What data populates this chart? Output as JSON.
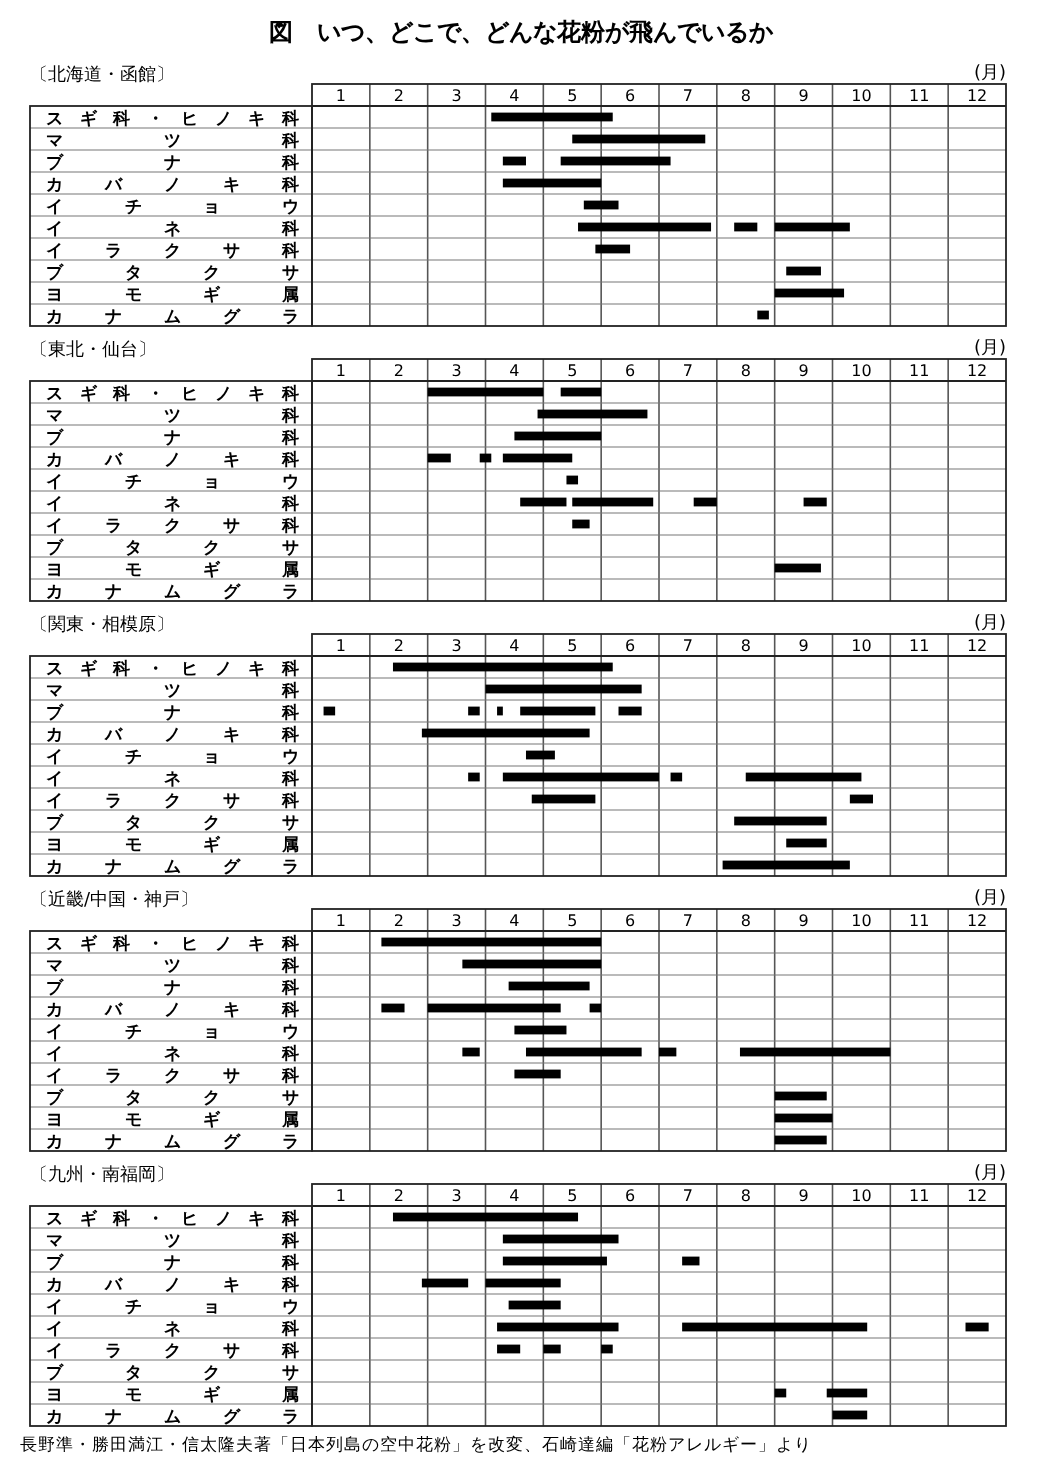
{
  "chart_data": [
    {
      "type": "bar",
      "orientation": "horizontal",
      "title": "図　いつ、どこで、どんな花粉が飛んでいるか",
      "subtitle": "〔北海道・函館〕",
      "xlabel": "(月)",
      "grid": true,
      "xlim": [
        0,
        12
      ],
      "xticks": [
        {
          "value": 0.5,
          "label": "1"
        },
        {
          "value": 1.5,
          "label": "2"
        },
        {
          "value": 2.5,
          "label": "3"
        },
        {
          "value": 3.5,
          "label": "4"
        },
        {
          "value": 4.5,
          "label": "5"
        },
        {
          "value": 5.5,
          "label": "6"
        },
        {
          "value": 6.5,
          "label": "7"
        },
        {
          "value": 7.5,
          "label": "8"
        },
        {
          "value": 8.5,
          "label": "9"
        },
        {
          "value": 9.5,
          "label": "10"
        },
        {
          "value": 10.5,
          "label": "11"
        },
        {
          "value": 11.5,
          "label": "12"
        }
      ],
      "categories": [
        "スギ科・ヒノキ科",
        "マツ科",
        "ブナ科",
        "カバノキ科",
        "イチョウ",
        "イネ科",
        "イラクサ科",
        "ブタクサ",
        "ヨモギ属",
        "カナムグラ"
      ],
      "series": [
        {
          "color": "#000000",
          "base": [
            3.1,
            4.5,
            3.3,
            3.3,
            4.7,
            4.6,
            4.9,
            8.2,
            8.0,
            7.7
          ],
          "values": [
            2.1,
            2.3,
            0.4,
            1.7,
            0.6,
            2.3,
            0.6,
            0.6,
            1.2,
            0.2
          ]
        },
        {
          "color": "#000000",
          "base": [
            null,
            null,
            4.3,
            null,
            null,
            7.3,
            null,
            null,
            null,
            null
          ],
          "values": [
            null,
            null,
            1.9,
            null,
            null,
            0.4,
            null,
            null,
            null,
            null
          ]
        },
        {
          "color": "#000000",
          "base": [
            null,
            null,
            null,
            null,
            null,
            8.0,
            null,
            null,
            null,
            null
          ],
          "values": [
            null,
            null,
            null,
            null,
            null,
            1.3,
            null,
            null,
            null,
            null
          ]
        }
      ]
    },
    {
      "type": "bar",
      "orientation": "horizontal",
      "subtitle": "〔東北・仙台〕",
      "xlabel": "(月)",
      "grid": true,
      "xlim": [
        0,
        12
      ],
      "xticks": [
        {
          "value": 0.5,
          "label": "1"
        },
        {
          "value": 1.5,
          "label": "2"
        },
        {
          "value": 2.5,
          "label": "3"
        },
        {
          "value": 3.5,
          "label": "4"
        },
        {
          "value": 4.5,
          "label": "5"
        },
        {
          "value": 5.5,
          "label": "6"
        },
        {
          "value": 6.5,
          "label": "7"
        },
        {
          "value": 7.5,
          "label": "8"
        },
        {
          "value": 8.5,
          "label": "9"
        },
        {
          "value": 9.5,
          "label": "10"
        },
        {
          "value": 10.5,
          "label": "11"
        },
        {
          "value": 11.5,
          "label": "12"
        }
      ],
      "categories": [
        "スギ科・ヒノキ科",
        "マツ科",
        "ブナ科",
        "カバノキ科",
        "イチョウ",
        "イネ科",
        "イラクサ科",
        "ブタクサ",
        "ヨモギ属",
        "カナムグラ"
      ],
      "series": [
        {
          "color": "#000000",
          "base": [
            2.0,
            3.9,
            3.5,
            2.0,
            4.4,
            3.6,
            4.5,
            null,
            8.0,
            null
          ],
          "values": [
            2.0,
            1.9,
            1.5,
            0.4,
            0.2,
            0.8,
            0.3,
            null,
            0.8,
            null
          ]
        },
        {
          "color": "#000000",
          "base": [
            4.3,
            null,
            null,
            2.9,
            null,
            4.5,
            null,
            null,
            null,
            null
          ],
          "values": [
            0.7,
            null,
            null,
            0.2,
            null,
            1.4,
            null,
            null,
            null,
            null
          ]
        },
        {
          "color": "#000000",
          "base": [
            null,
            null,
            null,
            3.3,
            null,
            6.6,
            null,
            null,
            null,
            null
          ],
          "values": [
            null,
            null,
            null,
            1.2,
            null,
            0.4,
            null,
            null,
            null,
            null
          ]
        },
        {
          "color": "#000000",
          "base": [
            null,
            null,
            null,
            null,
            null,
            8.5,
            null,
            null,
            null,
            null
          ],
          "values": [
            null,
            null,
            null,
            null,
            null,
            0.4,
            null,
            null,
            null,
            null
          ]
        }
      ]
    },
    {
      "type": "bar",
      "orientation": "horizontal",
      "subtitle": "〔関東・相模原〕",
      "xlabel": "(月)",
      "grid": true,
      "xlim": [
        0,
        12
      ],
      "xticks": [
        {
          "value": 0.5,
          "label": "1"
        },
        {
          "value": 1.5,
          "label": "2"
        },
        {
          "value": 2.5,
          "label": "3"
        },
        {
          "value": 3.5,
          "label": "4"
        },
        {
          "value": 4.5,
          "label": "5"
        },
        {
          "value": 5.5,
          "label": "6"
        },
        {
          "value": 6.5,
          "label": "7"
        },
        {
          "value": 7.5,
          "label": "8"
        },
        {
          "value": 8.5,
          "label": "9"
        },
        {
          "value": 9.5,
          "label": "10"
        },
        {
          "value": 10.5,
          "label": "11"
        },
        {
          "value": 11.5,
          "label": "12"
        }
      ],
      "categories": [
        "スギ科・ヒノキ科",
        "マツ科",
        "ブナ科",
        "カバノキ科",
        "イチョウ",
        "イネ科",
        "イラクサ科",
        "ブタクサ",
        "ヨモギ属",
        "カナムグラ"
      ],
      "series": [
        {
          "color": "#000000",
          "base": [
            1.4,
            3.0,
            0.2,
            1.9,
            3.7,
            2.7,
            3.8,
            7.3,
            8.2,
            7.1
          ],
          "values": [
            3.8,
            2.7,
            0.2,
            2.9,
            0.5,
            0.2,
            1.1,
            1.6,
            0.7,
            2.2
          ]
        },
        {
          "color": "#000000",
          "base": [
            null,
            null,
            2.7,
            null,
            null,
            3.3,
            9.3,
            null,
            null,
            null
          ],
          "values": [
            null,
            null,
            0.2,
            null,
            null,
            2.7,
            0.4,
            null,
            null,
            null
          ]
        },
        {
          "color": "#000000",
          "base": [
            null,
            null,
            3.2,
            null,
            null,
            6.2,
            null,
            null,
            null,
            null
          ],
          "values": [
            null,
            null,
            0.1,
            null,
            null,
            0.2,
            null,
            null,
            null,
            null
          ]
        },
        {
          "color": "#000000",
          "base": [
            null,
            null,
            3.6,
            null,
            null,
            7.5,
            null,
            null,
            null,
            null
          ],
          "values": [
            null,
            null,
            1.3,
            null,
            null,
            2.0,
            null,
            null,
            null,
            null
          ]
        },
        {
          "color": "#000000",
          "base": [
            null,
            null,
            5.3,
            null,
            null,
            null,
            null,
            null,
            null,
            null
          ],
          "values": [
            null,
            null,
            0.4,
            null,
            null,
            null,
            null,
            null,
            null,
            null
          ]
        }
      ]
    },
    {
      "type": "bar",
      "orientation": "horizontal",
      "subtitle": "〔近畿/中国・神戸〕",
      "xlabel": "(月)",
      "grid": true,
      "xlim": [
        0,
        12
      ],
      "xticks": [
        {
          "value": 0.5,
          "label": "1"
        },
        {
          "value": 1.5,
          "label": "2"
        },
        {
          "value": 2.5,
          "label": "3"
        },
        {
          "value": 3.5,
          "label": "4"
        },
        {
          "value": 4.5,
          "label": "5"
        },
        {
          "value": 5.5,
          "label": "6"
        },
        {
          "value": 6.5,
          "label": "7"
        },
        {
          "value": 7.5,
          "label": "8"
        },
        {
          "value": 8.5,
          "label": "9"
        },
        {
          "value": 9.5,
          "label": "10"
        },
        {
          "value": 10.5,
          "label": "11"
        },
        {
          "value": 11.5,
          "label": "12"
        }
      ],
      "categories": [
        "スギ科・ヒノキ科",
        "マツ科",
        "ブナ科",
        "カバノキ科",
        "イチョウ",
        "イネ科",
        "イラクサ科",
        "ブタクサ",
        "ヨモギ属",
        "カナムグラ"
      ],
      "series": [
        {
          "color": "#000000",
          "base": [
            1.2,
            2.6,
            3.4,
            1.2,
            3.5,
            2.6,
            3.5,
            8.0,
            8.0,
            8.0
          ],
          "values": [
            3.8,
            2.4,
            1.4,
            0.4,
            0.9,
            0.3,
            0.8,
            0.9,
            1.0,
            0.9
          ]
        },
        {
          "color": "#000000",
          "base": [
            null,
            null,
            null,
            2.0,
            null,
            3.7,
            null,
            null,
            null,
            null
          ],
          "values": [
            null,
            null,
            null,
            2.3,
            null,
            2.0,
            null,
            null,
            null,
            null
          ]
        },
        {
          "color": "#000000",
          "base": [
            null,
            null,
            null,
            4.8,
            null,
            6.0,
            null,
            null,
            null,
            null
          ],
          "values": [
            null,
            null,
            null,
            0.2,
            null,
            0.3,
            null,
            null,
            null,
            null
          ]
        },
        {
          "color": "#000000",
          "base": [
            null,
            null,
            null,
            null,
            null,
            7.4,
            null,
            null,
            null,
            null
          ],
          "values": [
            null,
            null,
            null,
            null,
            null,
            2.6,
            null,
            null,
            null,
            null
          ]
        }
      ]
    },
    {
      "type": "bar",
      "orientation": "horizontal",
      "subtitle": "〔九州・南福岡〕",
      "xlabel": "(月)",
      "grid": true,
      "xlim": [
        0,
        12
      ],
      "xticks": [
        {
          "value": 0.5,
          "label": "1"
        },
        {
          "value": 1.5,
          "label": "2"
        },
        {
          "value": 2.5,
          "label": "3"
        },
        {
          "value": 3.5,
          "label": "4"
        },
        {
          "value": 4.5,
          "label": "5"
        },
        {
          "value": 5.5,
          "label": "6"
        },
        {
          "value": 6.5,
          "label": "7"
        },
        {
          "value": 7.5,
          "label": "8"
        },
        {
          "value": 8.5,
          "label": "9"
        },
        {
          "value": 9.5,
          "label": "10"
        },
        {
          "value": 10.5,
          "label": "11"
        },
        {
          "value": 11.5,
          "label": "12"
        }
      ],
      "categories": [
        "スギ科・ヒノキ科",
        "マツ科",
        "ブナ科",
        "カバノキ科",
        "イチョウ",
        "イネ科",
        "イラクサ科",
        "ブタクサ",
        "ヨモギ属",
        "カナムグラ"
      ],
      "series": [
        {
          "color": "#000000",
          "base": [
            1.4,
            3.3,
            3.3,
            1.9,
            3.4,
            3.2,
            3.2,
            null,
            8.0,
            9.0
          ],
          "values": [
            3.2,
            2.0,
            1.8,
            0.8,
            0.9,
            2.1,
            0.4,
            null,
            0.2,
            0.6
          ]
        },
        {
          "color": "#000000",
          "base": [
            null,
            null,
            6.4,
            3.0,
            null,
            6.4,
            4.0,
            null,
            8.9,
            null
          ],
          "values": [
            null,
            null,
            0.3,
            1.3,
            null,
            3.2,
            0.3,
            null,
            0.7,
            null
          ]
        },
        {
          "color": "#000000",
          "base": [
            null,
            null,
            null,
            null,
            null,
            11.3,
            5.0,
            null,
            null,
            null
          ],
          "values": [
            null,
            null,
            null,
            null,
            null,
            0.4,
            0.2,
            null,
            null,
            null
          ]
        }
      ],
      "annotations": [
        "長野準・勝田満江・信太隆夫著「日本列島の空中花粉」を改変、石崎達編「花粉アレルギー」より"
      ]
    }
  ]
}
